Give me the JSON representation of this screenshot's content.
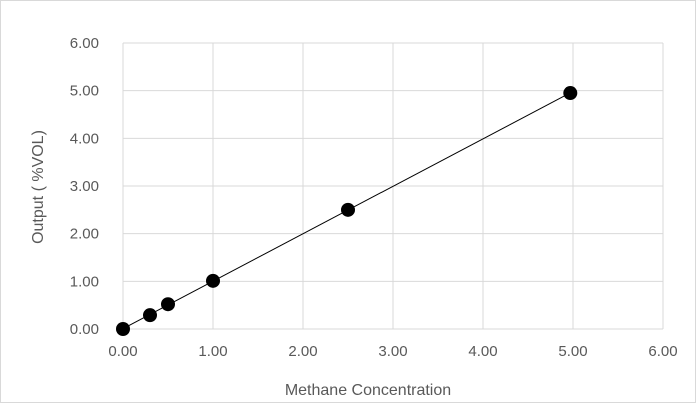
{
  "chart_data": {
    "type": "scatter",
    "title": "",
    "xlabel": "Methane Concentration",
    "ylabel": "Output ( %VOL)",
    "xlim": [
      0,
      6
    ],
    "ylim": [
      0,
      6
    ],
    "x_ticks": [
      "0.00",
      "1.00",
      "2.00",
      "3.00",
      "4.00",
      "5.00",
      "6.00"
    ],
    "y_ticks": [
      "0.00",
      "1.00",
      "2.00",
      "3.00",
      "4.00",
      "5.00",
      "6.00"
    ],
    "grid": true,
    "legend": "none",
    "trendline": "linear",
    "points": [
      {
        "x": 0.0,
        "y": 0.0
      },
      {
        "x": 0.3,
        "y": 0.29
      },
      {
        "x": 0.5,
        "y": 0.52
      },
      {
        "x": 1.0,
        "y": 1.01
      },
      {
        "x": 2.5,
        "y": 2.5
      },
      {
        "x": 4.97,
        "y": 4.95
      }
    ],
    "colors": {
      "marker": "#000000",
      "trendline": "#000000",
      "gridline": "#d9d9d9",
      "text": "#595959"
    }
  }
}
